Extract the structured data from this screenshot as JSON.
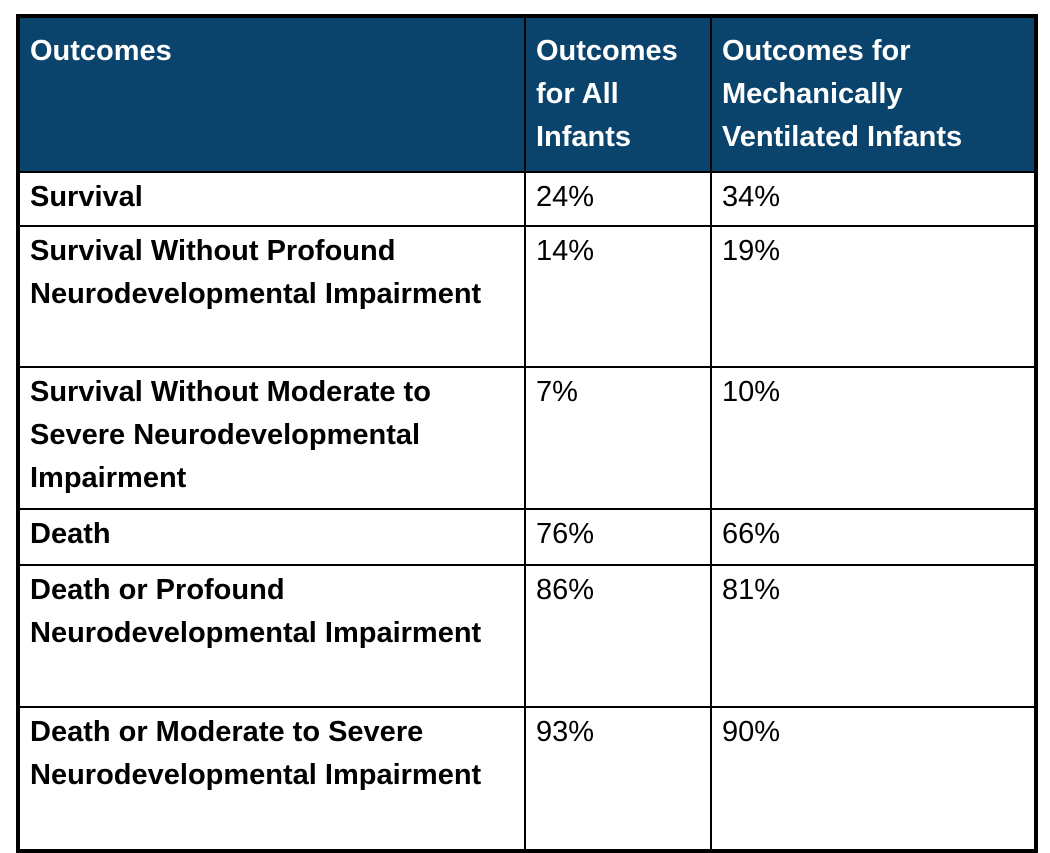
{
  "colors": {
    "header_bg": "#0A436C",
    "header_text": "#FFFFFF",
    "body_text": "#000000",
    "border": "#000000",
    "page_bg": "#FFFFFF"
  },
  "chart_data": {
    "type": "table",
    "columns": [
      "Outcomes",
      "Outcomes for All Infants",
      "Outcomes for Mechanically Ventilated Infants"
    ],
    "rows": [
      [
        "Survival",
        "24%",
        "34%"
      ],
      [
        "Survival Without Profound Neurodevelopmental Impairment",
        "14%",
        "19%"
      ],
      [
        "Survival Without Moderate to Severe Neurodevelopmental Impairment",
        "7%",
        "10%"
      ],
      [
        "Death",
        "76%",
        "66%"
      ],
      [
        "Death or Profound Neurodevelopmental Impairment",
        "86%",
        "81%"
      ],
      [
        "Death or Moderate to Severe Neurodevelopmental Impairment",
        "93%",
        "90%"
      ]
    ]
  }
}
